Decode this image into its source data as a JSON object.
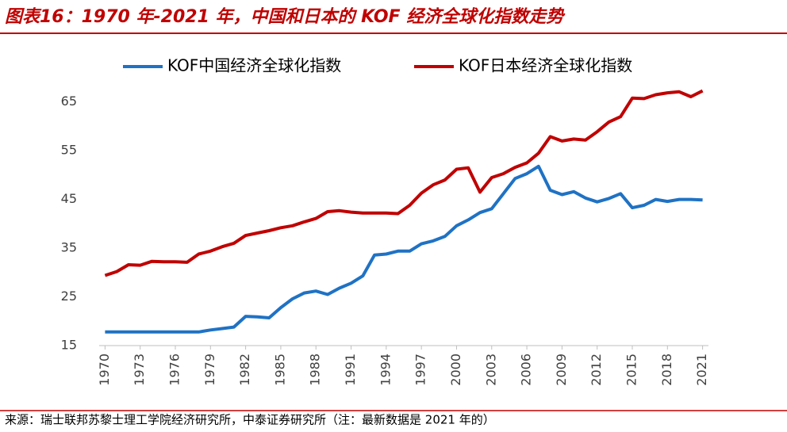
{
  "header": {
    "title": "图表16：1970 年-2021 年，中国和日本的 KOF 经济全球化指数走势"
  },
  "chart_data": {
    "type": "line",
    "x": [
      1970,
      1971,
      1972,
      1973,
      1974,
      1975,
      1976,
      1977,
      1978,
      1979,
      1980,
      1981,
      1982,
      1983,
      1984,
      1985,
      1986,
      1987,
      1988,
      1989,
      1990,
      1991,
      1992,
      1993,
      1994,
      1995,
      1996,
      1997,
      1998,
      1999,
      2000,
      2001,
      2002,
      2003,
      2004,
      2005,
      2006,
      2007,
      2008,
      2009,
      2010,
      2011,
      2012,
      2013,
      2014,
      2015,
      2016,
      2017,
      2018,
      2019,
      2020,
      2021
    ],
    "series": [
      {
        "name": "KOF中国经济全球化指数",
        "color": "#1f72c4",
        "values": [
          17.8,
          17.8,
          17.8,
          17.8,
          17.8,
          17.8,
          17.8,
          17.8,
          17.8,
          18.2,
          18.5,
          18.8,
          21.0,
          20.9,
          20.7,
          22.8,
          24.6,
          25.8,
          26.2,
          25.5,
          26.8,
          27.8,
          29.3,
          33.6,
          33.8,
          34.4,
          34.4,
          35.9,
          36.5,
          37.4,
          39.6,
          40.8,
          42.3,
          43.1,
          46.2,
          49.3,
          50.3,
          51.8,
          46.9,
          46.0,
          46.6,
          45.3,
          44.5,
          45.2,
          46.2,
          43.3,
          43.8,
          45.0,
          44.6,
          45.0,
          45.0,
          44.9
        ]
      },
      {
        "name": "KOF日本经济全球化指数",
        "color": "#c00000",
        "values": [
          29.4,
          30.2,
          31.6,
          31.5,
          32.3,
          32.2,
          32.2,
          32.1,
          33.8,
          34.4,
          35.3,
          36.0,
          37.6,
          38.1,
          38.6,
          39.2,
          39.6,
          40.4,
          41.1,
          42.5,
          42.7,
          42.4,
          42.2,
          42.2,
          42.2,
          42.1,
          43.8,
          46.3,
          48.0,
          49.0,
          51.2,
          51.5,
          46.5,
          49.5,
          50.3,
          51.6,
          52.5,
          54.5,
          57.9,
          57.0,
          57.4,
          57.2,
          58.9,
          60.9,
          62.0,
          65.8,
          65.7,
          66.5,
          66.9,
          67.1,
          66.1,
          67.3
        ]
      }
    ],
    "xlim": [
      1969.5,
      2021.5
    ],
    "xticks": [
      1970,
      1973,
      1976,
      1979,
      1982,
      1985,
      1988,
      1991,
      1994,
      1997,
      2000,
      2003,
      2006,
      2009,
      2012,
      2015,
      2018,
      2021
    ],
    "ylim": [
      15,
      70
    ],
    "yticks": [
      15,
      25,
      35,
      45,
      55,
      65
    ],
    "legend": "top"
  },
  "source": "来源：瑞士联邦苏黎士理工学院经济研究所，中泰证券研究所（注：最新数据是 2021 年的）"
}
